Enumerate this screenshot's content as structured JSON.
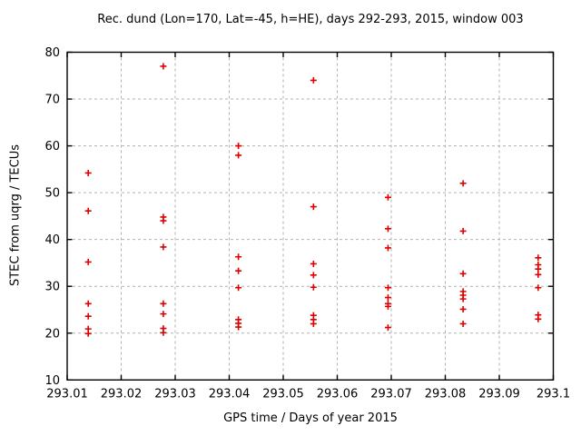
{
  "chart_data": {
    "type": "scatter",
    "title": "Rec. dund (Lon=170, Lat=-45, h=HE), days 292-293, 2015, window 003",
    "xlabel": "GPS time / Days of year 2015",
    "ylabel": "STEC from uqrg / TECUs",
    "xlim": [
      293.01,
      293.1
    ],
    "ylim": [
      10,
      80
    ],
    "x_ticks": [
      293.01,
      293.02,
      293.03,
      293.04,
      293.05,
      293.06,
      293.07,
      293.08,
      293.09,
      293.1
    ],
    "x_tick_labels": [
      "293.01",
      "293.02",
      "293.03",
      "293.04",
      "293.05",
      "293.06",
      "293.07",
      "293.08",
      "293.09",
      "293.1"
    ],
    "y_ticks": [
      10,
      20,
      30,
      40,
      50,
      60,
      70,
      80
    ],
    "y_tick_labels": [
      "10",
      "20",
      "30",
      "40",
      "50",
      "60",
      "70",
      "80"
    ],
    "grid": true,
    "legend_position": "none",
    "marker": "plus",
    "colors": {
      "marker": "#dd0000",
      "grid": "#b0b0b0",
      "axis": "#000000",
      "background": "#ffffff"
    },
    "series": [
      {
        "name": "STEC",
        "points": [
          [
            293.0139,
            54.2
          ],
          [
            293.0139,
            46.1
          ],
          [
            293.0139,
            35.2
          ],
          [
            293.0139,
            26.3
          ],
          [
            293.0139,
            23.6
          ],
          [
            293.0139,
            20.9
          ],
          [
            293.0139,
            19.9
          ],
          [
            293.0278,
            77.0
          ],
          [
            293.0278,
            44.8
          ],
          [
            293.0278,
            44.0
          ],
          [
            293.0278,
            38.4
          ],
          [
            293.0278,
            26.3
          ],
          [
            293.0278,
            24.1
          ],
          [
            293.0278,
            21.0
          ],
          [
            293.0278,
            20.1
          ],
          [
            293.0417,
            60.0
          ],
          [
            293.0417,
            58.0
          ],
          [
            293.0417,
            36.3
          ],
          [
            293.0417,
            33.3
          ],
          [
            293.0417,
            29.7
          ],
          [
            293.0417,
            22.9
          ],
          [
            293.0417,
            22.1
          ],
          [
            293.0417,
            21.3
          ],
          [
            293.0556,
            74.0
          ],
          [
            293.0556,
            47.0
          ],
          [
            293.0556,
            34.8
          ],
          [
            293.0556,
            32.4
          ],
          [
            293.0556,
            29.8
          ],
          [
            293.0556,
            23.8
          ],
          [
            293.0556,
            22.9
          ],
          [
            293.0556,
            22.0
          ],
          [
            293.0694,
            49.0
          ],
          [
            293.0694,
            42.3
          ],
          [
            293.0694,
            38.2
          ],
          [
            293.0694,
            29.7
          ],
          [
            293.0694,
            27.6
          ],
          [
            293.0694,
            26.3
          ],
          [
            293.0694,
            25.7
          ],
          [
            293.0694,
            21.2
          ],
          [
            293.0833,
            52.0
          ],
          [
            293.0833,
            41.8
          ],
          [
            293.0833,
            32.7
          ],
          [
            293.0833,
            28.9
          ],
          [
            293.0833,
            28.1
          ],
          [
            293.0833,
            27.3
          ],
          [
            293.0833,
            25.1
          ],
          [
            293.0833,
            22.0
          ],
          [
            293.0972,
            36.1
          ],
          [
            293.0972,
            34.6
          ],
          [
            293.0972,
            33.7
          ],
          [
            293.0972,
            32.5
          ],
          [
            293.0972,
            29.7
          ],
          [
            293.0972,
            23.9
          ],
          [
            293.0972,
            23.0
          ]
        ]
      }
    ]
  }
}
